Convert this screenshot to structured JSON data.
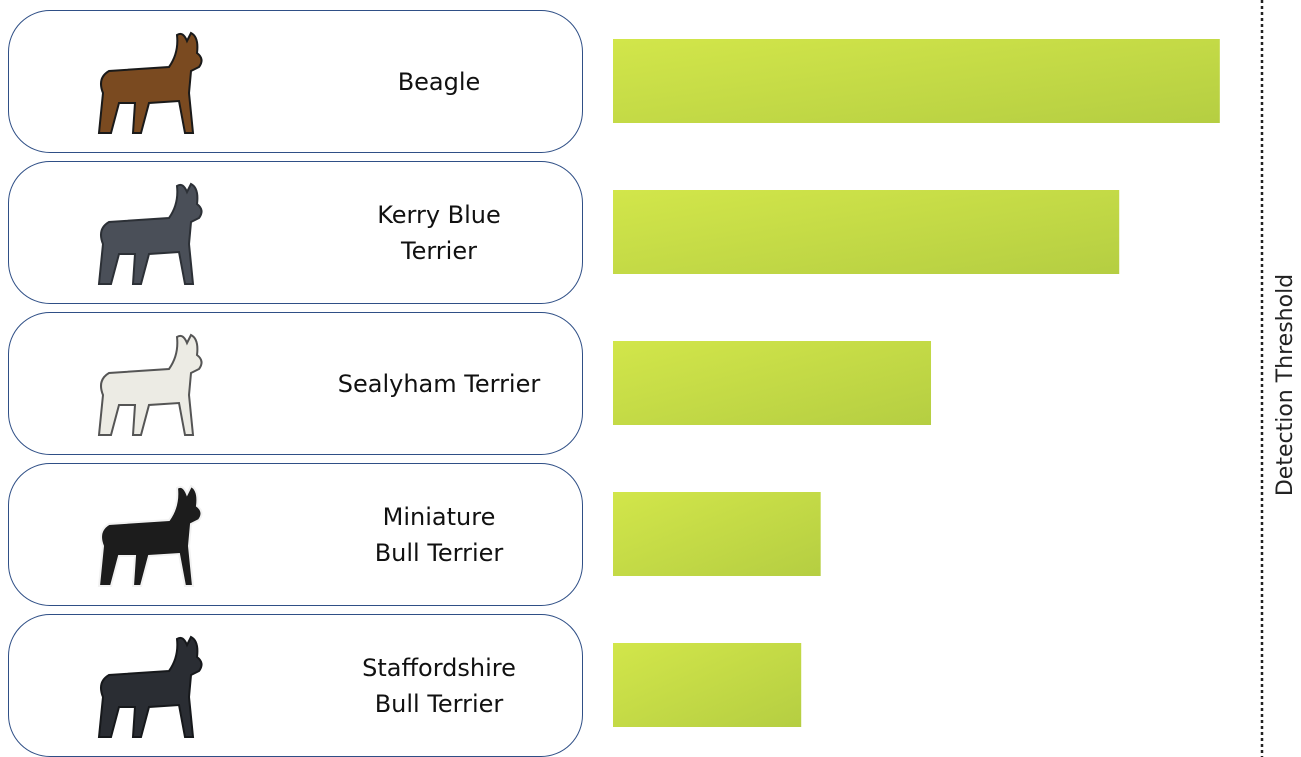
{
  "chart_data": {
    "type": "bar",
    "orientation": "horizontal",
    "categories": [
      "Beagle",
      "Kerry Blue\nTerrier",
      "Sealyham Terrier",
      "Miniature\nBull Terrier",
      "Staffordshire\nBull Terrier"
    ],
    "values": [
      0.935,
      0.78,
      0.49,
      0.32,
      0.29
    ],
    "color": "#c4dc45",
    "xlim": [
      0,
      1
    ],
    "threshold": {
      "value": 1,
      "label": "Detection Threshold"
    }
  }
}
